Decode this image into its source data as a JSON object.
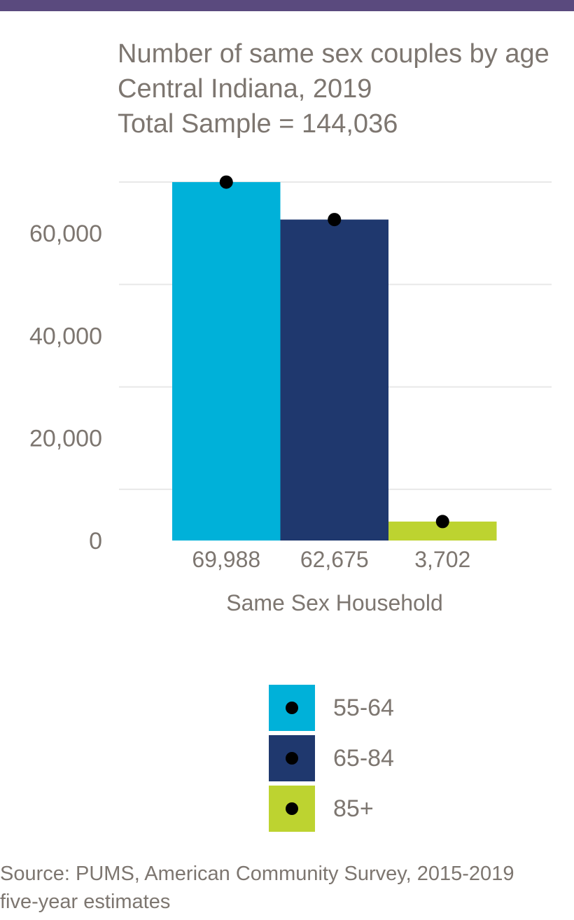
{
  "title_lines": [
    "Number of same sex couples by age",
    "Central Indiana, 2019",
    "Total Sample = 144,036"
  ],
  "colors": {
    "top_bar": "#5a4a7e",
    "text": "#7d7670",
    "grid": "#e8e8e8"
  },
  "chart_data": {
    "type": "bar",
    "title": "Number of same sex couples by age\nCentral Indiana, 2019\nTotal Sample = 144,036",
    "xlabel": "Same Sex Household",
    "ylabel": "",
    "ylim": [
      0,
      70000
    ],
    "yticks": [
      0,
      20000,
      40000,
      60000
    ],
    "ytick_labels": [
      "0",
      "20,000",
      "40,000",
      "60,000"
    ],
    "grid": true,
    "legend_placement": "bottom",
    "series": [
      {
        "name": "55-64",
        "value": 69988,
        "label": "69,988",
        "color": "#00b1d9"
      },
      {
        "name": "65-84",
        "value": 62675,
        "label": "62,675",
        "color": "#1f386e"
      },
      {
        "name": "85+",
        "value": 3702,
        "label": "3,702",
        "color": "#bdd330"
      }
    ]
  },
  "legend": {
    "items": [
      {
        "label": "55-64",
        "color": "#00b1d9"
      },
      {
        "label": "65-84",
        "color": "#1f386e"
      },
      {
        "label": "85+",
        "color": "#bdd330"
      }
    ]
  },
  "source_lines": [
    "Source: PUMS, American Community Survey, 2015-2019",
    "five-year estimates"
  ]
}
